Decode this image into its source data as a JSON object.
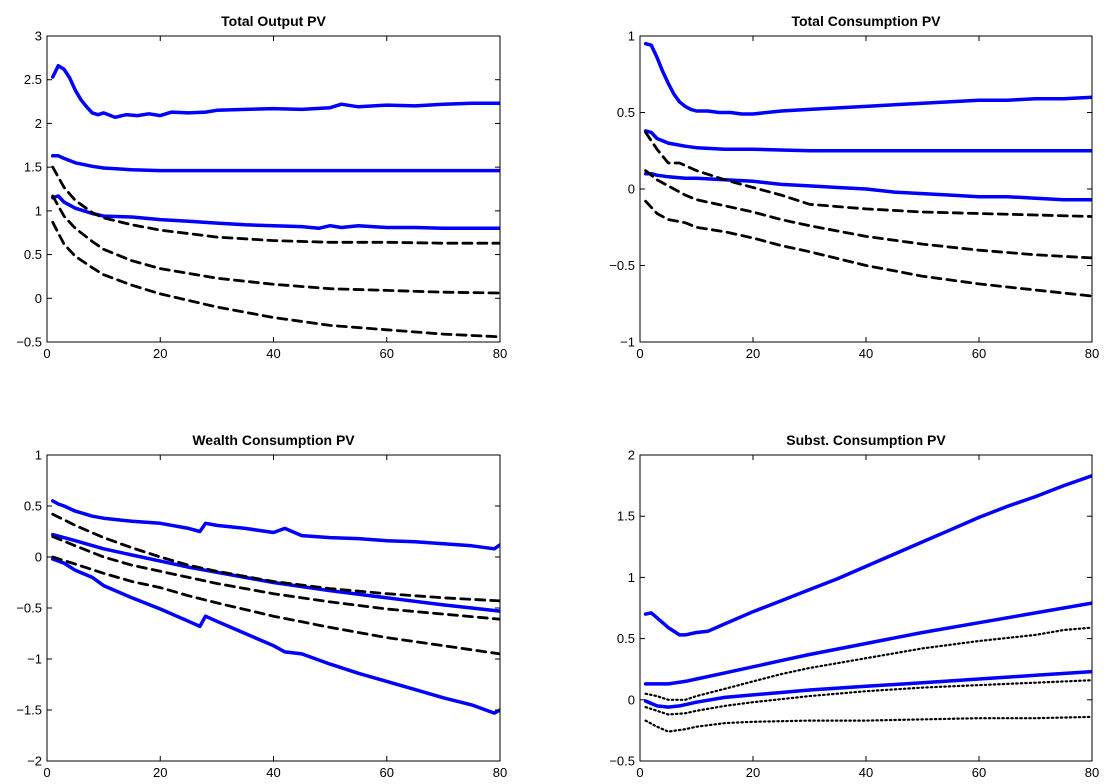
{
  "chart_data": [
    {
      "type": "line",
      "title": "Total Output PV",
      "xlim": [
        0,
        80
      ],
      "ylim": [
        -0.5,
        3
      ],
      "xticks": [
        0,
        20,
        40,
        60,
        80
      ],
      "yticks": [
        -0.5,
        0,
        0.5,
        1,
        1.5,
        2,
        2.5,
        3
      ],
      "series": [
        {
          "style": "solid",
          "color": "#0000ff",
          "x": [
            1,
            2,
            3,
            4,
            5,
            6,
            7,
            8,
            9,
            10,
            12,
            14,
            16,
            18,
            20,
            22,
            25,
            28,
            30,
            35,
            40,
            45,
            50,
            52,
            55,
            60,
            65,
            70,
            75,
            80
          ],
          "y": [
            2.53,
            2.66,
            2.62,
            2.52,
            2.38,
            2.27,
            2.19,
            2.12,
            2.1,
            2.12,
            2.07,
            2.1,
            2.09,
            2.11,
            2.09,
            2.13,
            2.12,
            2.13,
            2.15,
            2.16,
            2.17,
            2.16,
            2.18,
            2.22,
            2.19,
            2.21,
            2.2,
            2.22,
            2.23,
            2.23
          ]
        },
        {
          "style": "solid",
          "color": "#0000ff",
          "x": [
            1,
            2,
            3,
            5,
            8,
            10,
            15,
            20,
            30,
            40,
            50,
            60,
            70,
            80
          ],
          "y": [
            1.63,
            1.63,
            1.6,
            1.55,
            1.51,
            1.49,
            1.47,
            1.46,
            1.46,
            1.46,
            1.46,
            1.46,
            1.46,
            1.46
          ]
        },
        {
          "style": "solid",
          "color": "#0000ff",
          "x": [
            1,
            2,
            3,
            5,
            8,
            10,
            15,
            20,
            25,
            30,
            35,
            40,
            45,
            48,
            50,
            52,
            55,
            60,
            65,
            70,
            75,
            80
          ],
          "y": [
            1.15,
            1.17,
            1.1,
            1.03,
            0.97,
            0.94,
            0.93,
            0.9,
            0.88,
            0.86,
            0.84,
            0.83,
            0.82,
            0.8,
            0.83,
            0.81,
            0.83,
            0.81,
            0.81,
            0.8,
            0.8,
            0.8
          ]
        },
        {
          "style": "dashed",
          "color": "#000000",
          "x": [
            1,
            3,
            5,
            8,
            10,
            15,
            20,
            30,
            40,
            50,
            60,
            70,
            80
          ],
          "y": [
            1.5,
            1.27,
            1.12,
            0.98,
            0.92,
            0.84,
            0.78,
            0.7,
            0.66,
            0.64,
            0.64,
            0.63,
            0.63
          ]
        },
        {
          "style": "dashed",
          "color": "#000000",
          "x": [
            1,
            3,
            5,
            8,
            10,
            15,
            20,
            30,
            40,
            50,
            60,
            70,
            80
          ],
          "y": [
            1.17,
            0.94,
            0.8,
            0.65,
            0.56,
            0.43,
            0.34,
            0.23,
            0.16,
            0.11,
            0.09,
            0.07,
            0.06
          ]
        },
        {
          "style": "dashed",
          "color": "#000000",
          "x": [
            1,
            3,
            5,
            8,
            10,
            15,
            20,
            30,
            40,
            50,
            60,
            70,
            80
          ],
          "y": [
            0.87,
            0.62,
            0.48,
            0.35,
            0.27,
            0.15,
            0.05,
            -0.1,
            -0.22,
            -0.31,
            -0.36,
            -0.41,
            -0.44
          ]
        }
      ]
    },
    {
      "type": "line",
      "title": "Total Consumption PV",
      "xlim": [
        0,
        80
      ],
      "ylim": [
        -1,
        1
      ],
      "xticks": [
        0,
        20,
        40,
        60,
        80
      ],
      "yticks": [
        -1,
        -0.5,
        0,
        0.5,
        1
      ],
      "series": [
        {
          "style": "solid",
          "color": "#0000ff",
          "x": [
            1,
            2,
            3,
            4,
            5,
            6,
            7,
            8,
            9,
            10,
            12,
            14,
            16,
            18,
            20,
            25,
            30,
            35,
            40,
            45,
            50,
            55,
            60,
            65,
            70,
            75,
            80
          ],
          "y": [
            0.95,
            0.94,
            0.86,
            0.77,
            0.69,
            0.62,
            0.57,
            0.54,
            0.52,
            0.51,
            0.51,
            0.5,
            0.5,
            0.49,
            0.49,
            0.51,
            0.52,
            0.53,
            0.54,
            0.55,
            0.56,
            0.57,
            0.58,
            0.58,
            0.59,
            0.59,
            0.6
          ]
        },
        {
          "style": "solid",
          "color": "#0000ff",
          "x": [
            1,
            2,
            3,
            5,
            8,
            10,
            15,
            20,
            30,
            40,
            50,
            60,
            70,
            80
          ],
          "y": [
            0.38,
            0.37,
            0.33,
            0.3,
            0.28,
            0.27,
            0.26,
            0.26,
            0.25,
            0.25,
            0.25,
            0.25,
            0.25,
            0.25
          ]
        },
        {
          "style": "solid",
          "color": "#0000ff",
          "x": [
            1,
            2,
            3,
            5,
            8,
            10,
            15,
            20,
            25,
            30,
            35,
            40,
            45,
            50,
            55,
            60,
            65,
            70,
            75,
            80
          ],
          "y": [
            0.1,
            0.1,
            0.09,
            0.08,
            0.07,
            0.07,
            0.06,
            0.05,
            0.03,
            0.02,
            0.01,
            0,
            -0.02,
            -0.03,
            -0.04,
            -0.05,
            -0.05,
            -0.06,
            -0.07,
            -0.07
          ]
        },
        {
          "style": "dashed",
          "color": "#000000",
          "x": [
            1,
            3,
            5,
            7,
            10,
            15,
            20,
            25,
            30,
            40,
            50,
            60,
            70,
            80
          ],
          "y": [
            0.37,
            0.26,
            0.17,
            0.17,
            0.12,
            0.06,
            0.01,
            -0.04,
            -0.1,
            -0.13,
            -0.15,
            -0.16,
            -0.17,
            -0.18
          ]
        },
        {
          "style": "dashed",
          "color": "#000000",
          "x": [
            1,
            3,
            5,
            8,
            10,
            15,
            20,
            25,
            30,
            40,
            50,
            60,
            70,
            80
          ],
          "y": [
            0.12,
            0.06,
            0.02,
            -0.04,
            -0.07,
            -0.11,
            -0.15,
            -0.2,
            -0.24,
            -0.31,
            -0.36,
            -0.4,
            -0.43,
            -0.45
          ]
        },
        {
          "style": "dashed",
          "color": "#000000",
          "x": [
            1,
            3,
            5,
            8,
            10,
            15,
            20,
            25,
            30,
            40,
            50,
            60,
            70,
            80
          ],
          "y": [
            -0.08,
            -0.16,
            -0.2,
            -0.22,
            -0.25,
            -0.28,
            -0.32,
            -0.37,
            -0.41,
            -0.5,
            -0.57,
            -0.62,
            -0.66,
            -0.7
          ]
        }
      ]
    },
    {
      "type": "line",
      "title": "Wealth Consumption PV",
      "xlim": [
        0,
        80
      ],
      "ylim": [
        -2,
        1
      ],
      "xticks": [
        0,
        20,
        40,
        60,
        80
      ],
      "yticks": [
        -2,
        -1.5,
        -1,
        -0.5,
        0,
        0.5,
        1
      ],
      "series": [
        {
          "style": "solid",
          "color": "#0000ff",
          "x": [
            1,
            2,
            3,
            5,
            8,
            10,
            15,
            20,
            25,
            27,
            28,
            30,
            35,
            40,
            42,
            45,
            50,
            55,
            60,
            65,
            70,
            75,
            79,
            80
          ],
          "y": [
            0.55,
            0.52,
            0.5,
            0.45,
            0.4,
            0.38,
            0.35,
            0.33,
            0.28,
            0.25,
            0.33,
            0.31,
            0.28,
            0.24,
            0.28,
            0.21,
            0.19,
            0.18,
            0.16,
            0.15,
            0.13,
            0.11,
            0.08,
            0.12
          ]
        },
        {
          "style": "solid",
          "color": "#0000ff",
          "x": [
            1,
            5,
            10,
            15,
            20,
            25,
            30,
            40,
            50,
            60,
            70,
            80
          ],
          "y": [
            0.22,
            0.16,
            0.08,
            0.02,
            -0.04,
            -0.1,
            -0.15,
            -0.25,
            -0.33,
            -0.4,
            -0.47,
            -0.53
          ]
        },
        {
          "style": "solid",
          "color": "#0000ff",
          "x": [
            1,
            3,
            5,
            8,
            10,
            15,
            20,
            25,
            27,
            28,
            30,
            35,
            40,
            42,
            45,
            50,
            55,
            60,
            65,
            70,
            75,
            79,
            80
          ],
          "y": [
            -0.02,
            -0.06,
            -0.13,
            -0.2,
            -0.28,
            -0.4,
            -0.51,
            -0.63,
            -0.68,
            -0.58,
            -0.63,
            -0.75,
            -0.87,
            -0.93,
            -0.95,
            -1.05,
            -1.14,
            -1.22,
            -1.3,
            -1.38,
            -1.45,
            -1.53,
            -1.5
          ]
        },
        {
          "style": "dashed",
          "color": "#000000",
          "x": [
            1,
            5,
            10,
            15,
            20,
            25,
            30,
            40,
            50,
            60,
            70,
            80
          ],
          "y": [
            0.42,
            0.31,
            0.19,
            0.09,
            0,
            -0.08,
            -0.14,
            -0.24,
            -0.31,
            -0.36,
            -0.4,
            -0.43
          ]
        },
        {
          "style": "dashed",
          "color": "#000000",
          "x": [
            1,
            5,
            10,
            15,
            20,
            25,
            30,
            40,
            50,
            60,
            70,
            80
          ],
          "y": [
            0.2,
            0.11,
            0,
            -0.08,
            -0.14,
            -0.2,
            -0.26,
            -0.36,
            -0.44,
            -0.51,
            -0.56,
            -0.61
          ]
        },
        {
          "style": "dashed",
          "color": "#000000",
          "x": [
            1,
            5,
            10,
            15,
            20,
            25,
            30,
            40,
            50,
            60,
            70,
            80
          ],
          "y": [
            0,
            -0.07,
            -0.16,
            -0.24,
            -0.3,
            -0.38,
            -0.45,
            -0.58,
            -0.69,
            -0.79,
            -0.87,
            -0.95
          ]
        }
      ]
    },
    {
      "type": "line",
      "title": "Subst. Consumption PV",
      "xlim": [
        0,
        80
      ],
      "ylim": [
        -0.5,
        2
      ],
      "xticks": [
        0,
        20,
        40,
        60,
        80
      ],
      "yticks": [
        -0.5,
        0,
        0.5,
        1,
        1.5,
        2
      ],
      "series": [
        {
          "style": "solid",
          "color": "#0000ff",
          "x": [
            1,
            2,
            3,
            5,
            7,
            8,
            10,
            12,
            15,
            20,
            25,
            30,
            35,
            40,
            45,
            50,
            55,
            60,
            65,
            70,
            75,
            80
          ],
          "y": [
            0.7,
            0.71,
            0.67,
            0.59,
            0.53,
            0.53,
            0.55,
            0.56,
            0.62,
            0.72,
            0.81,
            0.9,
            0.99,
            1.09,
            1.19,
            1.29,
            1.39,
            1.49,
            1.58,
            1.66,
            1.75,
            1.83
          ]
        },
        {
          "style": "solid",
          "color": "#0000ff",
          "x": [
            1,
            3,
            5,
            8,
            10,
            15,
            20,
            25,
            30,
            40,
            50,
            60,
            70,
            80
          ],
          "y": [
            0.13,
            0.13,
            0.13,
            0.15,
            0.17,
            0.22,
            0.27,
            0.32,
            0.37,
            0.46,
            0.55,
            0.63,
            0.71,
            0.79
          ]
        },
        {
          "style": "solid",
          "color": "#0000ff",
          "x": [
            1,
            3,
            5,
            7,
            10,
            15,
            20,
            25,
            30,
            40,
            50,
            60,
            70,
            80
          ],
          "y": [
            -0.01,
            -0.05,
            -0.06,
            -0.05,
            -0.02,
            0.02,
            0.04,
            0.06,
            0.08,
            0.11,
            0.14,
            0.17,
            0.2,
            0.23
          ]
        },
        {
          "style": "dotted",
          "color": "#000000",
          "x": [
            1,
            3,
            5,
            8,
            10,
            15,
            20,
            25,
            30,
            40,
            50,
            60,
            70,
            75,
            80
          ],
          "y": [
            0.05,
            0.03,
            0,
            0,
            0.03,
            0.09,
            0.15,
            0.21,
            0.26,
            0.34,
            0.42,
            0.48,
            0.53,
            0.57,
            0.59
          ]
        },
        {
          "style": "dotted",
          "color": "#000000",
          "x": [
            1,
            3,
            5,
            8,
            10,
            15,
            20,
            30,
            40,
            50,
            60,
            70,
            80
          ],
          "y": [
            -0.06,
            -0.09,
            -0.12,
            -0.11,
            -0.09,
            -0.05,
            -0.02,
            0.03,
            0.07,
            0.1,
            0.12,
            0.14,
            0.16
          ]
        },
        {
          "style": "dotted",
          "color": "#000000",
          "x": [
            1,
            3,
            5,
            8,
            10,
            15,
            20,
            30,
            40,
            50,
            60,
            70,
            80
          ],
          "y": [
            -0.17,
            -0.22,
            -0.26,
            -0.24,
            -0.22,
            -0.19,
            -0.18,
            -0.17,
            -0.17,
            -0.16,
            -0.15,
            -0.15,
            -0.14
          ]
        }
      ]
    }
  ]
}
